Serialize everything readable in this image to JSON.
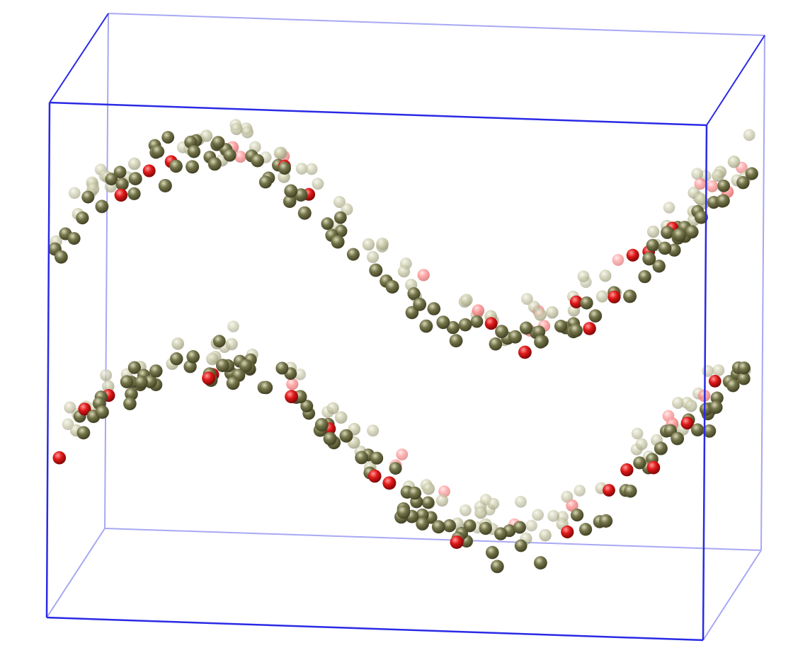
{
  "scene": {
    "type": "3d-molecular-render",
    "background": "#ffffff",
    "box": {
      "front_edge_color": "#2a2ae6",
      "back_edge_color": "#a8a8f4"
    },
    "particles": {
      "colors": {
        "neutral": "#74744a",
        "neutral_highlight": "#c9c9a6",
        "charged": "#e01818",
        "charged_highlight": "#ff8a8a"
      },
      "layers": [
        "upper-sheet",
        "lower-sheet"
      ],
      "shape": "sinusoidal bilayer"
    }
  }
}
